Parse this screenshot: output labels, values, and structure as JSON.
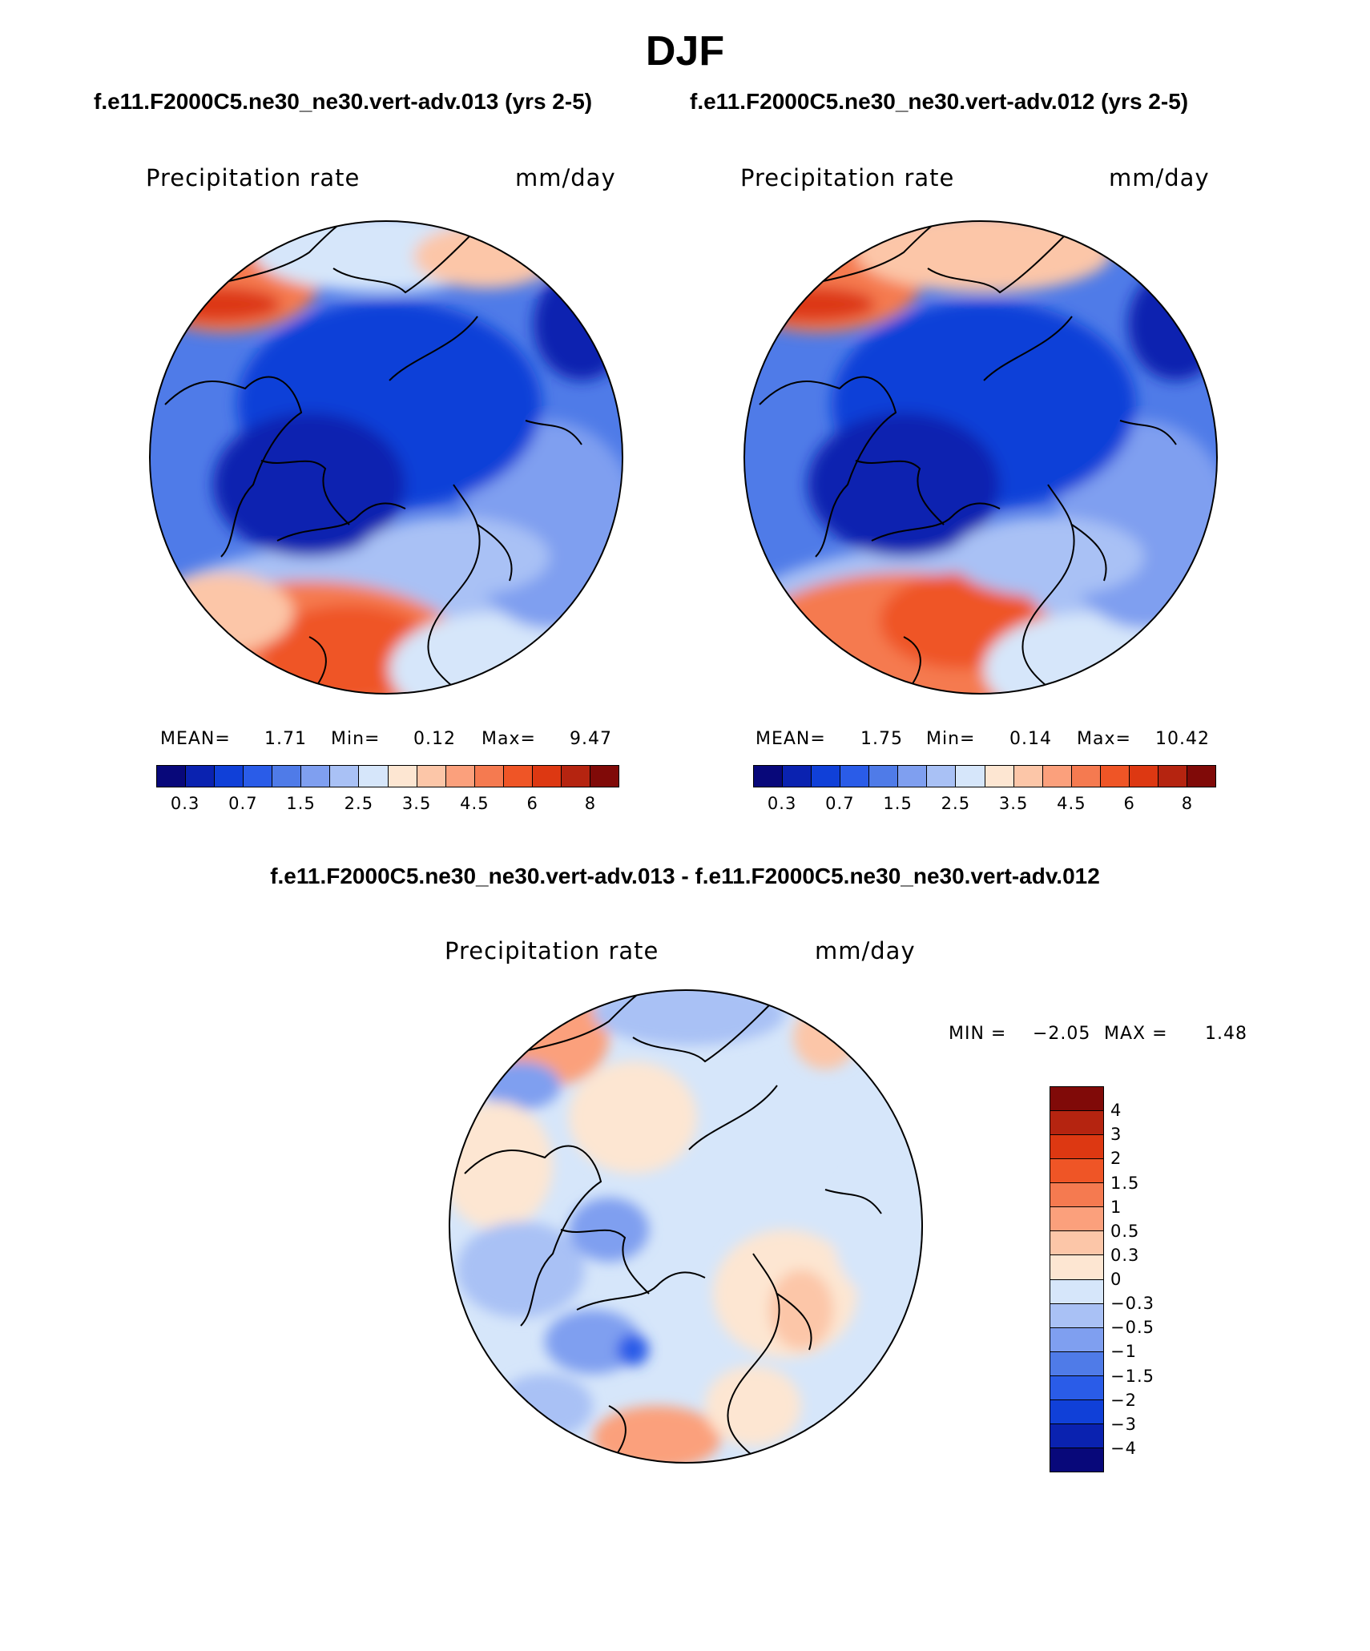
{
  "page": {
    "title": "DJF",
    "subtitle_left": "f.e11.F2000C5.ne30_ne30.vert-adv.013 (yrs 2-5)",
    "subtitle_right": "f.e11.F2000C5.ne30_ne30.vert-adv.012 (yrs 2-5)",
    "diff_title": "f.e11.F2000C5.ne30_ne30.vert-adv.013 - f.e11.F2000C5.ne30_ne30.vert-adv.012"
  },
  "panels": [
    {
      "variable": "Precipitation rate",
      "units": "mm/day",
      "mean_label": "MEAN=",
      "mean_value": "1.71",
      "min_label": "Min=",
      "min_value": "0.12",
      "max_label": "Max=",
      "max_value": "9.47"
    },
    {
      "variable": "Precipitation rate",
      "units": "mm/day",
      "mean_label": "MEAN=",
      "mean_value": "1.75",
      "min_label": "Min=",
      "min_value": "0.14",
      "max_label": "Max=",
      "max_value": "10.42"
    }
  ],
  "diff_panel": {
    "variable": "Precipitation rate",
    "units": "mm/day",
    "min_label": "MIN =",
    "min_value": "−2.05",
    "max_label": "MAX =",
    "max_value": "1.48"
  },
  "colorbar_field": {
    "colors": [
      "#08087a",
      "#0a22b0",
      "#1040d8",
      "#2a5ce8",
      "#4f7be8",
      "#7f9ff0",
      "#a9c1f5",
      "#d6e6fa",
      "#fde6d2",
      "#fcc6a8",
      "#fba07c",
      "#f57a50",
      "#ef5526",
      "#dd3812",
      "#b52410",
      "#800a08"
    ],
    "labels": [
      "0.3",
      "0.7",
      "1.5",
      "2.5",
      "3.5",
      "4.5",
      "6",
      "8"
    ]
  },
  "colorbar_diff": {
    "colors": [
      "#800a08",
      "#b52410",
      "#dd3812",
      "#ef5526",
      "#f57a50",
      "#fba07c",
      "#fcc6a8",
      "#fde6d2",
      "#d6e6fa",
      "#a9c1f5",
      "#7f9ff0",
      "#4f7be8",
      "#2a5ce8",
      "#1040d8",
      "#0a22b0",
      "#08087a"
    ],
    "labels": [
      "4",
      "3",
      "2",
      "1.5",
      "1",
      "0.5",
      "0.3",
      "0",
      "−0.3",
      "−0.5",
      "−1",
      "−1.5",
      "−2",
      "−3",
      "−4"
    ]
  }
}
